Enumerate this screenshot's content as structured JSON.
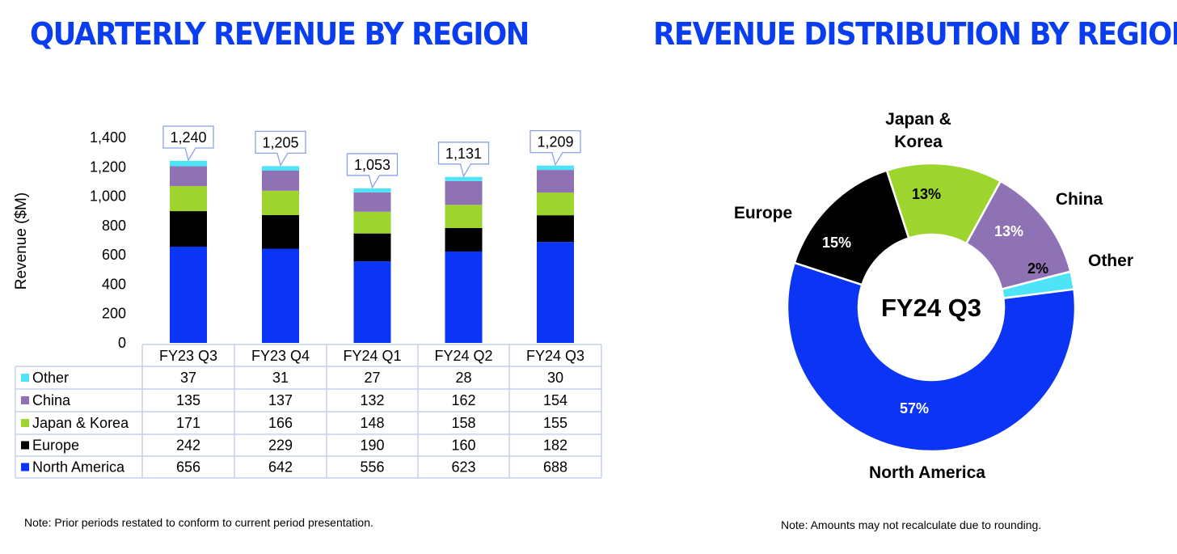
{
  "titles": {
    "left": "QUARTERLY REVENUE BY REGION",
    "right": "REVENUE DISTRIBUTION BY REGION"
  },
  "notes": {
    "left": "Note: Prior periods restated to conform to current period presentation.",
    "right": "Note: Amounts may not recalculate due to rounding."
  },
  "colors": {
    "North America": "#0b34f5",
    "Europe": "#000000",
    "Japan & Korea": "#9ed42e",
    "China": "#8f72b3",
    "Other": "#4fe3f7",
    "title": "#0a3cf0"
  },
  "chart_data": [
    {
      "type": "bar",
      "stacked": true,
      "title": "QUARTERLY REVENUE BY REGION",
      "ylabel": "Revenue ($M)",
      "ylim": [
        0,
        1400
      ],
      "yticks": [
        0,
        200,
        400,
        600,
        800,
        1000,
        1200,
        1400
      ],
      "ytick_labels": [
        "0",
        "200",
        "400",
        "600",
        "800",
        "1,000",
        "1,200",
        "1,400"
      ],
      "categories": [
        "FY23 Q3",
        "FY23 Q4",
        "FY24 Q1",
        "FY24 Q2",
        "FY24 Q3"
      ],
      "series": [
        {
          "name": "North America",
          "values": [
            656,
            642,
            556,
            623,
            688
          ]
        },
        {
          "name": "Europe",
          "values": [
            242,
            229,
            190,
            160,
            182
          ]
        },
        {
          "name": "Japan & Korea",
          "values": [
            171,
            166,
            148,
            158,
            155
          ]
        },
        {
          "name": "China",
          "values": [
            135,
            137,
            132,
            162,
            154
          ]
        },
        {
          "name": "Other",
          "values": [
            37,
            31,
            27,
            28,
            30
          ]
        }
      ],
      "totals": [
        1240,
        1205,
        1053,
        1131,
        1209
      ],
      "total_labels": [
        "1,240",
        "1,205",
        "1,053",
        "1,131",
        "1,209"
      ],
      "table_row_order": [
        "Other",
        "China",
        "Japan & Korea",
        "Europe",
        "North America"
      ],
      "grid": false
    },
    {
      "type": "pie",
      "donut": true,
      "title": "REVENUE DISTRIBUTION BY REGION",
      "center_label": "FY24 Q3",
      "slices": [
        {
          "name": "North America",
          "percent": 57,
          "label": "57%",
          "name_label": "North America"
        },
        {
          "name": "Europe",
          "percent": 15,
          "label": "15%",
          "name_label": "Europe"
        },
        {
          "name": "Japan & Korea",
          "percent": 13,
          "label": "13%",
          "name_label": "Japan &\nKorea"
        },
        {
          "name": "China",
          "percent": 13,
          "label": "13%",
          "name_label": "China"
        },
        {
          "name": "Other",
          "percent": 2,
          "label": "2%",
          "name_label": "Other"
        }
      ]
    }
  ]
}
